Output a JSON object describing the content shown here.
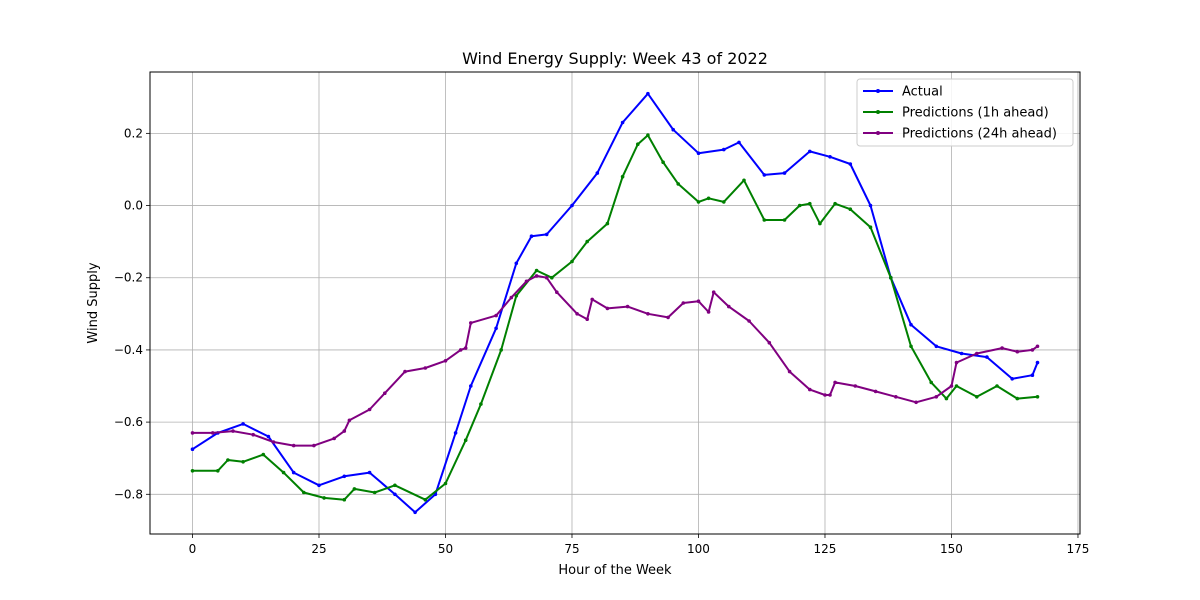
{
  "chart_data": {
    "type": "line",
    "title": "Wind Energy Supply: Week 43 of 2022",
    "xlabel": "Hour of the Week",
    "ylabel": "Wind Supply",
    "xlim": [
      -8.4,
      175.4
    ],
    "ylim": [
      -0.91,
      0.37
    ],
    "xticks": [
      0,
      25,
      50,
      75,
      100,
      125,
      150,
      175
    ],
    "yticks": [
      -0.8,
      -0.6,
      -0.4,
      -0.2,
      0.0,
      0.2
    ],
    "xtick_labels": [
      "0",
      "25",
      "50",
      "75",
      "100",
      "125",
      "150",
      "175"
    ],
    "ytick_labels": [
      "−0.8",
      "−0.6",
      "−0.4",
      "−0.2",
      "0.0",
      "0.2"
    ],
    "grid": true,
    "legend_position": "top-right",
    "series": [
      {
        "name": "Actual",
        "color": "#0000ff",
        "x": [
          0,
          5,
          10,
          15,
          20,
          25,
          30,
          35,
          40,
          44,
          48,
          52,
          55,
          60,
          64,
          67,
          70,
          75,
          80,
          85,
          90,
          95,
          100,
          105,
          108,
          113,
          117,
          122,
          126,
          130,
          134,
          138,
          142,
          147,
          152,
          157,
          162,
          166,
          167
        ],
        "y": [
          -0.675,
          -0.63,
          -0.605,
          -0.64,
          -0.74,
          -0.775,
          -0.75,
          -0.74,
          -0.8,
          -0.85,
          -0.8,
          -0.63,
          -0.5,
          -0.34,
          -0.16,
          -0.085,
          -0.08,
          0.0,
          0.09,
          0.23,
          0.31,
          0.21,
          0.145,
          0.155,
          0.175,
          0.085,
          0.09,
          0.15,
          0.135,
          0.115,
          0.0,
          -0.2,
          -0.33,
          -0.39,
          -0.41,
          -0.42,
          -0.48,
          -0.47,
          -0.435
        ]
      },
      {
        "name": "Predictions (1h ahead)",
        "color": "#008000",
        "x": [
          0,
          5,
          7,
          10,
          14,
          18,
          22,
          26,
          30,
          32,
          36,
          40,
          46,
          50,
          54,
          57,
          61,
          64,
          68,
          71,
          75,
          78,
          82,
          85,
          88,
          90,
          93,
          96,
          100,
          102,
          105,
          109,
          113,
          117,
          120,
          122,
          124,
          127,
          130,
          134,
          138,
          142,
          146,
          149,
          151,
          155,
          159,
          163,
          167
        ],
        "y": [
          -0.735,
          -0.735,
          -0.705,
          -0.71,
          -0.69,
          -0.74,
          -0.795,
          -0.81,
          -0.815,
          -0.785,
          -0.795,
          -0.775,
          -0.815,
          -0.77,
          -0.65,
          -0.55,
          -0.4,
          -0.25,
          -0.18,
          -0.2,
          -0.155,
          -0.1,
          -0.05,
          0.08,
          0.17,
          0.195,
          0.12,
          0.06,
          0.01,
          0.02,
          0.01,
          0.07,
          -0.04,
          -0.04,
          0.0,
          0.005,
          -0.05,
          0.005,
          -0.01,
          -0.06,
          -0.2,
          -0.39,
          -0.49,
          -0.535,
          -0.5,
          -0.53,
          -0.5,
          -0.535,
          -0.53
        ]
      },
      {
        "name": "Predictions (24h ahead)",
        "color": "#800080",
        "x": [
          0,
          4,
          8,
          12,
          16,
          20,
          24,
          28,
          30,
          31,
          35,
          38,
          42,
          46,
          50,
          53,
          54,
          55,
          60,
          63,
          66,
          68,
          70,
          72,
          76,
          78,
          79,
          82,
          86,
          90,
          94,
          97,
          100,
          102,
          103,
          106,
          110,
          114,
          118,
          122,
          125,
          126,
          127,
          131,
          135,
          139,
          143,
          147,
          150,
          151,
          155,
          160,
          163,
          166,
          167
        ],
        "y": [
          -0.63,
          -0.63,
          -0.625,
          -0.635,
          -0.655,
          -0.665,
          -0.665,
          -0.645,
          -0.625,
          -0.595,
          -0.565,
          -0.52,
          -0.46,
          -0.45,
          -0.43,
          -0.4,
          -0.395,
          -0.325,
          -0.305,
          -0.255,
          -0.21,
          -0.195,
          -0.2,
          -0.24,
          -0.3,
          -0.315,
          -0.26,
          -0.285,
          -0.28,
          -0.3,
          -0.31,
          -0.27,
          -0.265,
          -0.295,
          -0.24,
          -0.28,
          -0.32,
          -0.38,
          -0.46,
          -0.51,
          -0.525,
          -0.525,
          -0.49,
          -0.5,
          -0.515,
          -0.53,
          -0.545,
          -0.53,
          -0.5,
          -0.435,
          -0.41,
          -0.395,
          -0.405,
          -0.4,
          -0.39
        ]
      }
    ]
  }
}
